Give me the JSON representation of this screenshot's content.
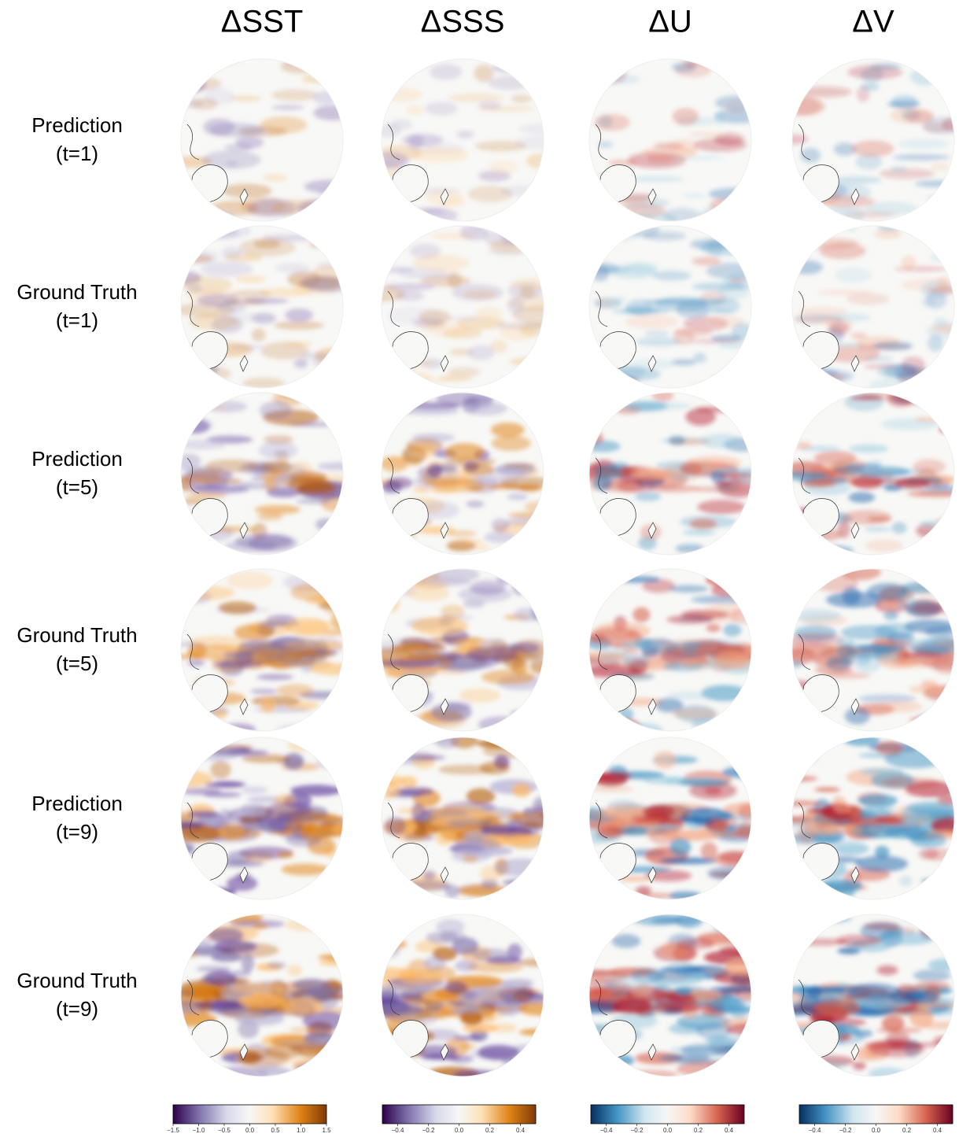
{
  "columns": [
    "ΔSST",
    "ΔSSS",
    "ΔU",
    "ΔV"
  ],
  "rows": [
    {
      "label": "Prediction",
      "time": "(t=1)"
    },
    {
      "label": "Ground Truth",
      "time": "(t=1)"
    },
    {
      "label": "Prediction",
      "time": "(t=5)"
    },
    {
      "label": "Ground Truth",
      "time": "(t=5)"
    },
    {
      "label": "Prediction",
      "time": "(t=9)"
    },
    {
      "label": "Ground Truth",
      "time": "(t=9)"
    }
  ],
  "colorbars": [
    {
      "colormap": "PuOr_r",
      "lim": [
        -1.5,
        1.5
      ],
      "ticks": [
        {
          "value": -1.5,
          "label": "−1.5"
        },
        {
          "value": -1.0,
          "label": "−1.0"
        },
        {
          "value": -0.5,
          "label": "−0.5"
        },
        {
          "value": 0.0,
          "label": "0.0"
        },
        0.5,
        {
          "value": 1.0,
          "label": "1.0"
        },
        1.5
      ]
    },
    {
      "colormap": "PuOr_r",
      "lim": [
        -0.5,
        0.5
      ],
      "ticks": [
        {
          "value": -0.4,
          "label": "−0.4"
        },
        {
          "value": -0.2,
          "label": "−0.2"
        },
        {
          "value": 0.0,
          "label": "0.0"
        },
        0.2,
        0.4
      ]
    },
    {
      "colormap": "RdBu_r",
      "lim": [
        -0.5,
        0.5
      ],
      "ticks": [
        {
          "value": -0.4,
          "label": "−0.4"
        },
        {
          "value": -0.2,
          "label": "−0.2"
        },
        {
          "value": 0.0,
          "label": "0.0"
        },
        0.2,
        0.4
      ]
    },
    {
      "colormap": "RdBu_r",
      "lim": [
        -0.5,
        0.5
      ],
      "ticks": [
        {
          "value": -0.4,
          "label": "−0.4"
        },
        {
          "value": -0.2,
          "label": "−0.2"
        },
        {
          "value": 0.0,
          "label": "0.0"
        },
        0.2,
        0.4
      ]
    }
  ]
}
